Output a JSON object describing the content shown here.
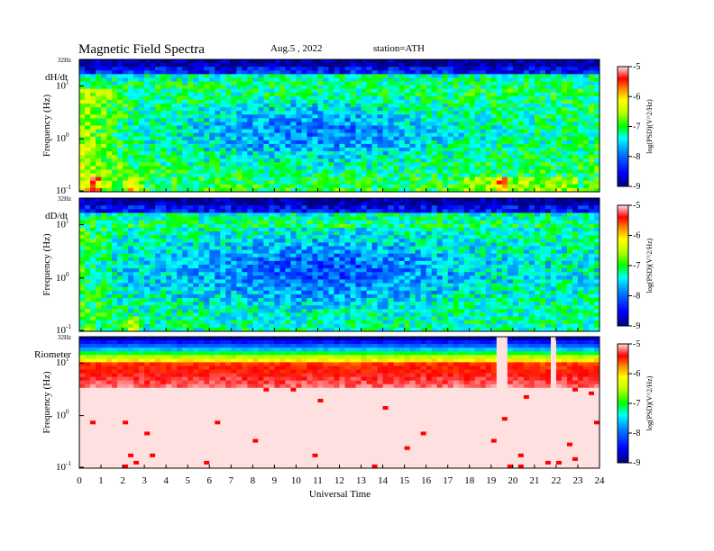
{
  "header": {
    "title": "Magnetic  Field  Spectra",
    "date": "Aug.5  , 2022",
    "station": "station=ATH"
  },
  "chart_data": [
    {
      "type": "heatmap",
      "panel_label": "dH/dt",
      "top_label": "32Hz",
      "ylabel": "Frequency  (Hz)",
      "y_scale": "log",
      "y_ticks": [
        {
          "base": "10",
          "exp": "-1"
        },
        {
          "base": "10",
          "exp": "0"
        },
        {
          "base": "10",
          "exp": "1"
        }
      ],
      "xlim": [
        0,
        24
      ],
      "colorbar": {
        "ticks": [
          "-5",
          "-6",
          "-7",
          "-8",
          "-9"
        ],
        "label": "log(PSD)(V^2/Hz)",
        "range": [
          -9,
          -5
        ]
      },
      "features": {
        "green_band_hz": [
          1,
          8
        ],
        "blue_band_top": true,
        "red_low_freq_spots_ut": [
          0.7,
          2.5,
          19.5
        ]
      }
    },
    {
      "type": "heatmap",
      "panel_label": "dD/dt",
      "top_label": "32Hz",
      "ylabel": "Frequency  (Hz)",
      "y_scale": "log",
      "y_ticks": [
        {
          "base": "10",
          "exp": "-1"
        },
        {
          "base": "10",
          "exp": "0"
        },
        {
          "base": "10",
          "exp": "1"
        }
      ],
      "xlim": [
        0,
        24
      ],
      "colorbar": {
        "ticks": [
          "-5",
          "-6",
          "-7",
          "-8",
          "-9"
        ],
        "label": "log(PSD)(V^2/Hz)",
        "range": [
          -9,
          -5
        ]
      },
      "features": {
        "green_band_hz": [
          1,
          8
        ],
        "blue_band_top": true,
        "red_low_freq_spots_ut": [
          2.5
        ]
      }
    },
    {
      "type": "heatmap",
      "panel_label": "Riometer",
      "top_label": "32Hz",
      "ylabel": "Frequency  (Hz)",
      "y_scale": "log",
      "y_ticks": [
        {
          "base": "10",
          "exp": "-1"
        },
        {
          "base": "10",
          "exp": "0"
        },
        {
          "base": "10",
          "exp": "1"
        }
      ],
      "xlim": [
        0,
        24
      ],
      "colorbar": {
        "ticks": [
          "-5",
          "-6",
          "-7",
          "-8",
          "-9"
        ],
        "label": "log(PSD)(V^2/Hz)",
        "range": [
          -9,
          -5
        ]
      },
      "features": {
        "data_gaps_ut": [
          19.5,
          21.9
        ]
      }
    }
  ],
  "x_axis": {
    "label": "Universal  Time",
    "ticks": [
      "0",
      "1",
      "2",
      "3",
      "4",
      "5",
      "6",
      "7",
      "8",
      "9",
      "10",
      "11",
      "12",
      "13",
      "14",
      "15",
      "16",
      "17",
      "18",
      "19",
      "20",
      "21",
      "22",
      "23",
      "24"
    ]
  },
  "colormap": [
    "#000080",
    "#0000ff",
    "#0080ff",
    "#00ffff",
    "#00ff80",
    "#80ff00",
    "#ffff00",
    "#ff8000",
    "#ff0000",
    "#ffc0c0",
    "#ffffff"
  ]
}
